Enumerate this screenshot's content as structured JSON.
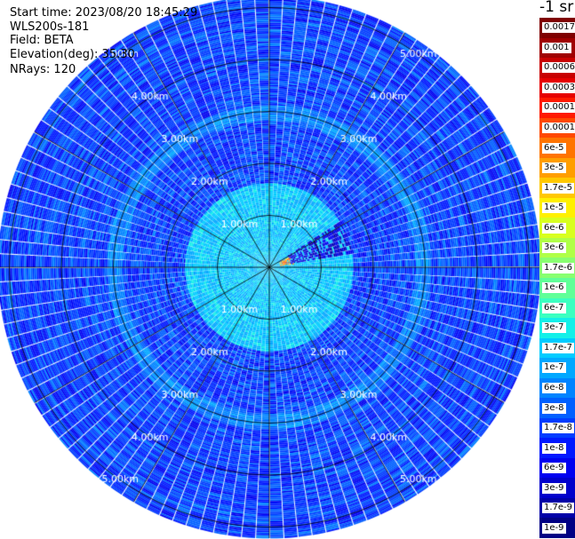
{
  "info": {
    "start_time": "Start time: 2023/08/20 18:45:29",
    "instrument": "WLS200s-181",
    "field": "Field: BETA",
    "elevation": "Elevation(deg): 35.30",
    "nrays": "NRays: 120"
  },
  "colorbar": {
    "unit_label": "-1 sr",
    "labels": [
      "0.0017",
      "0.001",
      "0.0006",
      "0.0003",
      "0.00017",
      "0.0001",
      "6e-5",
      "3e-5",
      "1.7e-5",
      "1e-5",
      "6e-6",
      "3e-6",
      "1.7e-6",
      "1e-6",
      "6e-7",
      "3e-7",
      "1.7e-7",
      "1e-7",
      "6e-8",
      "3e-8",
      "1.7e-8",
      "1e-8",
      "6e-9",
      "3e-9",
      "1.7e-9",
      "1e-9"
    ],
    "colors": [
      "#7f0000",
      "#a00000",
      "#c80000",
      "#e60000",
      "#ff1a00",
      "#ff4800",
      "#ff7400",
      "#ff9e00",
      "#ffc800",
      "#fff000",
      "#d8ff1f",
      "#b0ff47",
      "#88ff70",
      "#60ff98",
      "#3cffc0",
      "#14f0e8",
      "#00ccff",
      "#00a8ff",
      "#0084ff",
      "#0060ff",
      "#003cff",
      "#0018ff",
      "#0000f0",
      "#0000cc",
      "#0000a8",
      "#000084"
    ]
  },
  "chart_data": {
    "type": "heatmap",
    "projection": "polar (PPI scan)",
    "field": "BETA",
    "unit": "-1 sr",
    "elevation_deg": 35.3,
    "n_rays": 120,
    "range_rings_km": [
      1,
      2,
      3,
      4,
      5
    ],
    "ring_labels": [
      "1.00km",
      "2.00km",
      "3.00km",
      "4.00km",
      "5.00km"
    ],
    "max_range_km": 5.2,
    "color_scale": "log",
    "value_range": [
      1e-09,
      0.0017
    ],
    "typical_value": 2e-08,
    "observed_features": [
      {
        "description": "elevated backscatter near origin",
        "range_km": [
          0,
          1.6
        ],
        "value_approx": 1.7e-07
      },
      {
        "description": "bright aerosol band",
        "range_km": [
          2.8,
          3.1
        ],
        "value_approx": 6e-08
      },
      {
        "description": "high backscatter echo",
        "azimuth_deg": 72,
        "range_km": [
          0.2,
          0.5
        ],
        "value_approx": 3e-05
      },
      {
        "description": "dark low-signal sector",
        "azimuth_deg": [
          55,
          80
        ],
        "range_km": [
          0.4,
          1.6
        ],
        "value_approx": 5e-09
      }
    ]
  }
}
